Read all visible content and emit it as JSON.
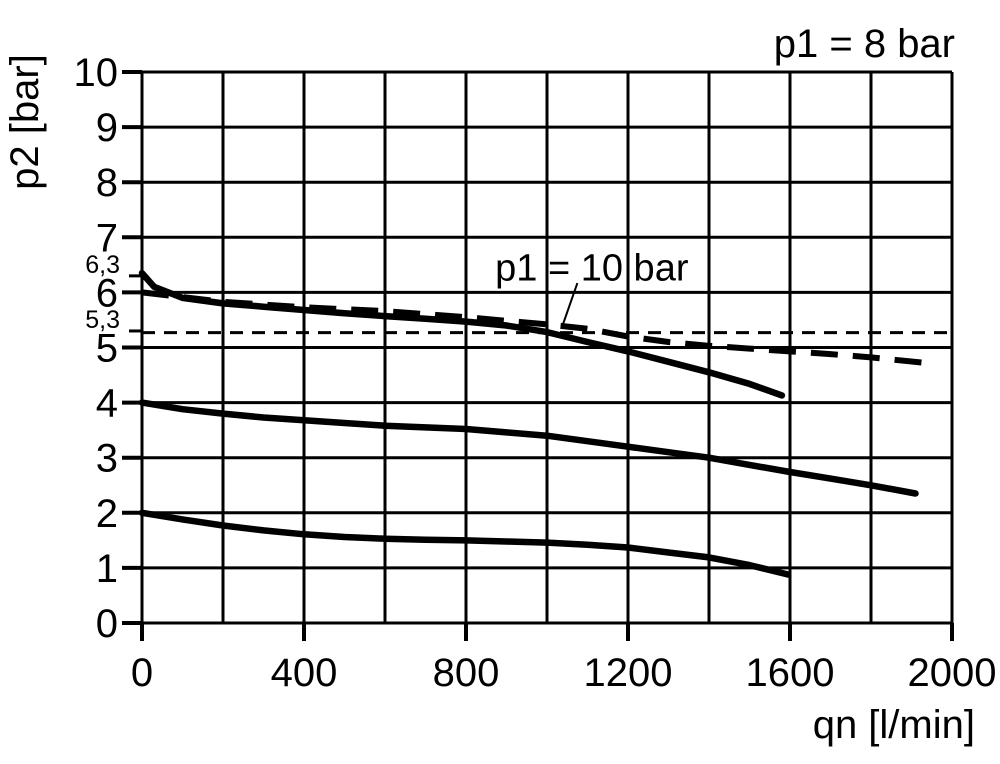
{
  "chart_data": {
    "type": "line",
    "condition_label": "p1 = 8 bar",
    "xlabel": "qn [l/min]",
    "ylabel": "p2 [bar]",
    "xlim": [
      0,
      2000
    ],
    "ylim": [
      0,
      10
    ],
    "grid": true,
    "x_grid_step": 200,
    "y_grid_step": 1,
    "x_tick_labels": [
      {
        "value": 0,
        "label": "0"
      },
      {
        "value": 400,
        "label": "400"
      },
      {
        "value": 800,
        "label": "800"
      },
      {
        "value": 1200,
        "label": "1200"
      },
      {
        "value": 1600,
        "label": "1600"
      },
      {
        "value": 2000,
        "label": "2000"
      }
    ],
    "y_tick_labels": [
      {
        "value": 0,
        "label": "0"
      },
      {
        "value": 1,
        "label": "1"
      },
      {
        "value": 2,
        "label": "2"
      },
      {
        "value": 3,
        "label": "3"
      },
      {
        "value": 4,
        "label": "4"
      },
      {
        "value": 5,
        "label": "5"
      },
      {
        "value": 6,
        "label": "6"
      },
      {
        "value": 7,
        "label": "7"
      },
      {
        "value": 8,
        "label": "8"
      },
      {
        "value": 9,
        "label": "9"
      },
      {
        "value": 10,
        "label": "10"
      }
    ],
    "special_y_marks": [
      {
        "value": 6.3,
        "label": "6,3"
      },
      {
        "value": 5.3,
        "label": "5,3"
      }
    ],
    "annotation": {
      "text": "p1 = 10 bar",
      "text_x": 872,
      "text_y": 6.22,
      "leader": {
        "x1": 1075,
        "y1": 6.17,
        "x2": 1037,
        "y2": 5.37
      }
    },
    "line_color": "#000000",
    "series": [
      {
        "name": "p1 = 8 bar, setting 6.3 bar",
        "style": "solid",
        "points": [
          [
            0,
            6.35
          ],
          [
            30,
            6.1
          ],
          [
            100,
            5.9
          ],
          [
            200,
            5.8
          ],
          [
            300,
            5.74
          ],
          [
            400,
            5.68
          ],
          [
            500,
            5.62
          ],
          [
            600,
            5.57
          ],
          [
            700,
            5.52
          ],
          [
            800,
            5.47
          ],
          [
            900,
            5.4
          ],
          [
            1000,
            5.28
          ],
          [
            1100,
            5.1
          ],
          [
            1200,
            4.93
          ],
          [
            1300,
            4.74
          ],
          [
            1400,
            4.55
          ],
          [
            1500,
            4.34
          ],
          [
            1580,
            4.13
          ]
        ]
      },
      {
        "name": "p1 = 10 bar",
        "style": "long-dash",
        "points": [
          [
            0,
            6.0
          ],
          [
            200,
            5.83
          ],
          [
            400,
            5.73
          ],
          [
            600,
            5.66
          ],
          [
            800,
            5.55
          ],
          [
            1000,
            5.42
          ],
          [
            1100,
            5.34
          ],
          [
            1200,
            5.2
          ],
          [
            1300,
            5.1
          ],
          [
            1400,
            5.03
          ],
          [
            1500,
            4.98
          ],
          [
            1600,
            4.93
          ],
          [
            1700,
            4.88
          ],
          [
            1800,
            4.82
          ],
          [
            1960,
            4.7
          ]
        ]
      },
      {
        "name": "reference line 5,3 bar",
        "style": "short-dash",
        "points": [
          [
            0,
            5.27
          ],
          [
            2000,
            5.27
          ]
        ]
      },
      {
        "name": "setting 4 bar",
        "style": "solid",
        "points": [
          [
            0,
            4.0
          ],
          [
            100,
            3.88
          ],
          [
            200,
            3.8
          ],
          [
            300,
            3.73
          ],
          [
            400,
            3.68
          ],
          [
            500,
            3.63
          ],
          [
            600,
            3.58
          ],
          [
            700,
            3.55
          ],
          [
            800,
            3.52
          ],
          [
            900,
            3.46
          ],
          [
            1000,
            3.4
          ],
          [
            1100,
            3.3
          ],
          [
            1200,
            3.2
          ],
          [
            1300,
            3.1
          ],
          [
            1400,
            3.0
          ],
          [
            1500,
            2.87
          ],
          [
            1600,
            2.74
          ],
          [
            1700,
            2.62
          ],
          [
            1800,
            2.5
          ],
          [
            1910,
            2.35
          ]
        ]
      },
      {
        "name": "setting 2 bar",
        "style": "solid",
        "points": [
          [
            0,
            2.0
          ],
          [
            100,
            1.88
          ],
          [
            200,
            1.77
          ],
          [
            300,
            1.68
          ],
          [
            400,
            1.61
          ],
          [
            500,
            1.56
          ],
          [
            600,
            1.53
          ],
          [
            700,
            1.51
          ],
          [
            800,
            1.5
          ],
          [
            900,
            1.48
          ],
          [
            1000,
            1.46
          ],
          [
            1100,
            1.42
          ],
          [
            1200,
            1.37
          ],
          [
            1300,
            1.28
          ],
          [
            1400,
            1.19
          ],
          [
            1500,
            1.05
          ],
          [
            1595,
            0.88
          ]
        ]
      }
    ]
  }
}
